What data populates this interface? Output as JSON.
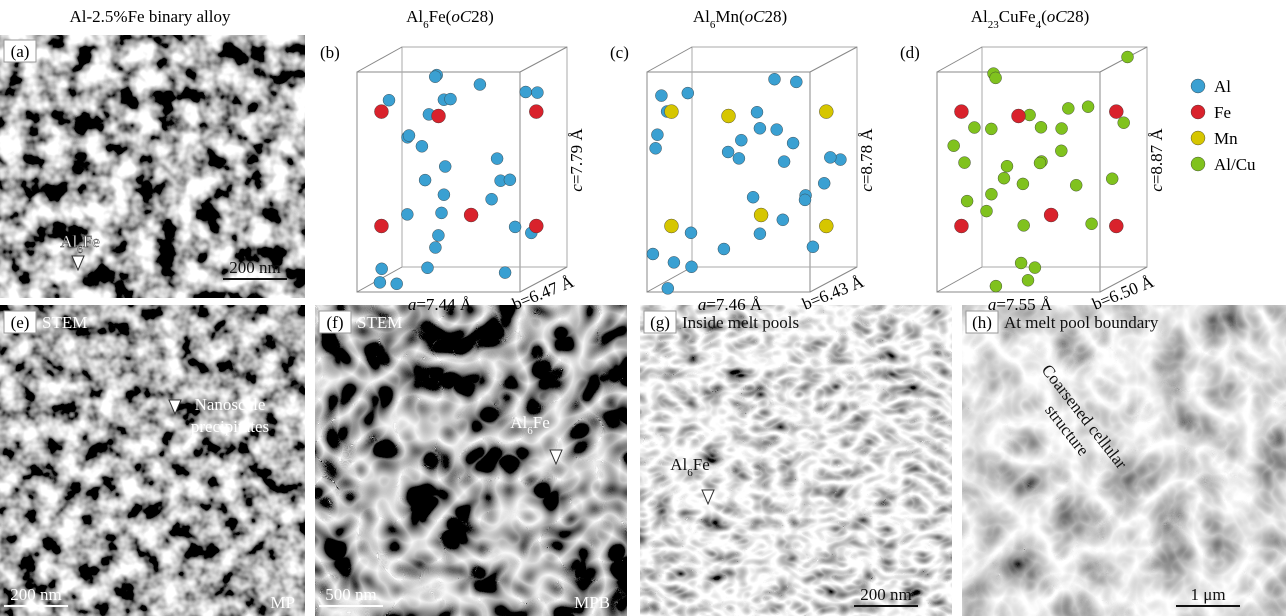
{
  "top_panels": [
    {
      "label": "(a)",
      "title": [
        {
          "text": "Al-2.5%Fe binary alloy"
        }
      ],
      "annotations": [
        [
          [
            {
              "text": "Al"
            },
            {
              "text": "6",
              "sub": true
            },
            {
              "text": "Fe"
            }
          ]
        ]
      ],
      "scale_bar": "200 nm"
    },
    {
      "label": "(b)",
      "title": [
        {
          "text": "Al"
        },
        {
          "text": "6",
          "sub": true
        },
        {
          "text": "Fe("
        },
        {
          "text": "oC",
          "italic": true
        },
        {
          "text": "28)"
        }
      ],
      "a": [
        {
          "text": "a",
          "italic": true
        },
        {
          "text": "=7.44 Å"
        }
      ],
      "b": [
        {
          "text": "b=6.47 Å"
        }
      ],
      "c": [
        {
          "text": "c",
          "italic": true
        },
        {
          "text": "=7.79 Å"
        }
      ]
    },
    {
      "label": "(c)",
      "title": [
        {
          "text": "Al"
        },
        {
          "text": "6",
          "sub": true
        },
        {
          "text": "Mn("
        },
        {
          "text": "oC",
          "italic": true
        },
        {
          "text": "28)"
        }
      ],
      "a": [
        {
          "text": "a",
          "italic": true
        },
        {
          "text": "=7.46 Å"
        }
      ],
      "b": [
        {
          "text": "b=6.43 Å"
        }
      ],
      "c": [
        {
          "text": "c",
          "italic": true
        },
        {
          "text": "=8.78 Å"
        }
      ]
    },
    {
      "label": "(d)",
      "title": [
        {
          "text": "Al"
        },
        {
          "text": "23",
          "sub": true
        },
        {
          "text": "CuFe"
        },
        {
          "text": "4",
          "sub": true
        },
        {
          "text": "("
        },
        {
          "text": "oC",
          "italic": true
        },
        {
          "text": "28)"
        }
      ],
      "a": [
        {
          "text": "a",
          "italic": true
        },
        {
          "text": "=7.55 Å"
        }
      ],
      "b": [
        {
          "text": "b=6.50 Å"
        }
      ],
      "c": [
        {
          "text": "c",
          "italic": true
        },
        {
          "text": "=8.87 Å"
        }
      ]
    }
  ],
  "legend": [
    {
      "name": "Al",
      "color": "#3aa0d2"
    },
    {
      "name": "Fe",
      "color": "#d9222c"
    },
    {
      "name": "Mn",
      "color": "#d6c600"
    },
    {
      "name": "Al/Cu",
      "color": "#80c21e"
    }
  ],
  "bottom_panels": [
    {
      "label": "(e)",
      "caption": "STEM",
      "annotations": [
        [
          [
            {
              "text": "Nanoscale"
            }
          ],
          [
            {
              "text": "precipitates"
            }
          ]
        ]
      ],
      "scale_bar": "200 nm",
      "corner": "MP"
    },
    {
      "label": "(f)",
      "caption": "STEM",
      "annotations": [
        [
          [
            {
              "text": "Al"
            },
            {
              "text": "6",
              "sub": true
            },
            {
              "text": "Fe"
            }
          ]
        ]
      ],
      "scale_bar": "500 nm",
      "corner": "MPB"
    },
    {
      "label": "(g)",
      "caption": "Inside melt pools",
      "annotations": [
        [
          [
            {
              "text": "Al"
            },
            {
              "text": "6",
              "sub": true
            },
            {
              "text": "Fe"
            }
          ]
        ]
      ],
      "scale_bar": "200 nm"
    },
    {
      "label": "(h)",
      "caption": "At melt pool boundary",
      "annotations": [
        [
          [
            {
              "text": "Coarsened cellular"
            }
          ],
          [
            {
              "text": "structure"
            }
          ]
        ]
      ],
      "scale_bar": "1 μm"
    }
  ]
}
